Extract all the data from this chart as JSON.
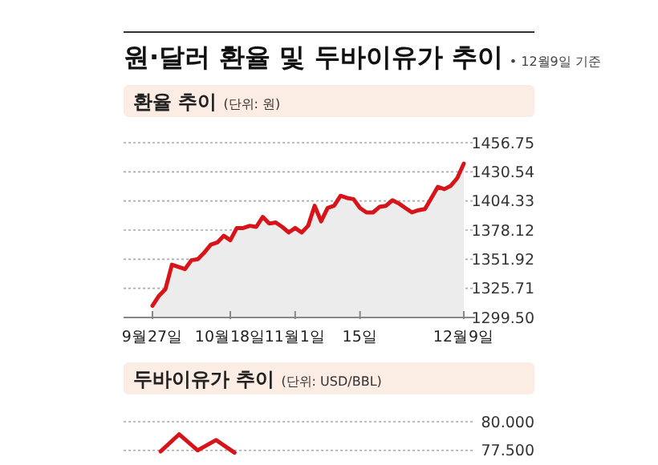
{
  "chart_data": [
    {
      "type": "area",
      "title": "원·달러 환율 및 두바이유가 추이",
      "subtitle": "• 12월9일 기준",
      "annotations": [
        "환율 추이"
      ],
      "ylabel": "(단위: 원)",
      "categories": [
        "9월27일",
        null,
        null,
        null,
        null,
        null,
        null,
        null,
        null,
        null,
        null,
        null,
        "10월18일",
        null,
        null,
        null,
        null,
        null,
        null,
        null,
        null,
        null,
        "11월1일",
        null,
        null,
        null,
        null,
        null,
        null,
        null,
        null,
        null,
        "15일",
        null,
        null,
        null,
        null,
        null,
        null,
        null,
        null,
        null,
        null,
        null,
        null,
        null,
        null,
        null,
        "12월9일"
      ],
      "values": [
        1310,
        1319,
        1325,
        1347,
        1345,
        1343,
        1351,
        1352,
        1358,
        1365,
        1367,
        1373,
        1369,
        1380,
        1380,
        1382,
        1381,
        1390,
        1384,
        1385,
        1381,
        1376,
        1380,
        1376,
        1382,
        1400,
        1386,
        1398,
        1400,
        1409,
        1407,
        1406,
        1398,
        1394,
        1394,
        1399,
        1400,
        1405,
        1402,
        1398,
        1394,
        1396,
        1397,
        1407,
        1417,
        1415,
        1418,
        1425,
        1438
      ],
      "color": "#d7141a",
      "ylim": [
        1299.5,
        1456.75
      ],
      "yticks": [
        {
          "value": 1299.5,
          "label": "1299.50"
        },
        {
          "value": 1325.71,
          "label": "1325.71"
        },
        {
          "value": 1351.92,
          "label": "1351.92"
        },
        {
          "value": 1378.12,
          "label": "1378.12"
        },
        {
          "value": 1404.33,
          "label": "1404.33"
        },
        {
          "value": 1430.54,
          "label": "1430.54"
        },
        {
          "value": 1456.75,
          "label": "1456.75"
        }
      ],
      "grid": "y"
    },
    {
      "type": "line",
      "annotations": [
        "두바이유가 추이"
      ],
      "ylabel": "(단위: USD/BBL)",
      "categories": [
        null,
        null,
        null,
        null,
        null,
        null,
        null,
        null,
        null,
        null,
        null,
        null,
        null,
        null,
        null,
        null,
        null,
        null,
        null,
        null
      ],
      "values": [
        null,
        null,
        77.4,
        78.9,
        77.5,
        78.4,
        77.3,
        null,
        null,
        null,
        null,
        null,
        null,
        null,
        null,
        null,
        null,
        null,
        null,
        null
      ],
      "color": "#d7141a",
      "ylim": [
        77.2,
        80.0
      ],
      "yticks": [
        {
          "value": 80.0,
          "label": "80.000"
        },
        {
          "value": 77.5,
          "label": "77.500"
        }
      ],
      "tick_labels": "y",
      "grid": "y"
    }
  ]
}
